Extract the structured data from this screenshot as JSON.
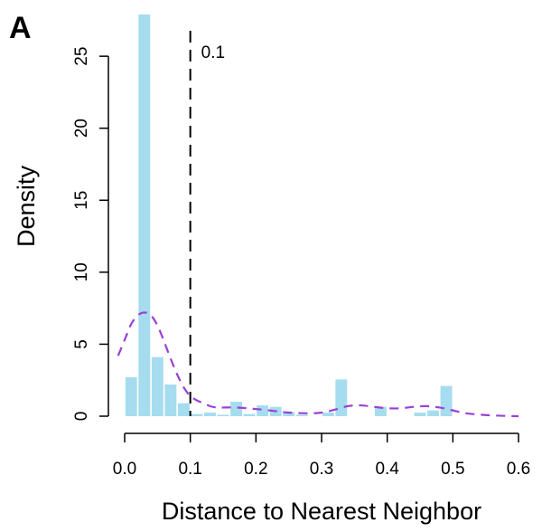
{
  "panel_label": "A",
  "colors": {
    "bar": "#a6dcef",
    "density_line": "#9b3fd6",
    "threshold_line": "#000000"
  },
  "chart_data": {
    "type": "bar",
    "xlabel": "Distance to Nearest Neighbor",
    "ylabel": "Density",
    "xlim": [
      0,
      0.6
    ],
    "ylim": [
      0,
      27.9
    ],
    "x_ticks": [
      0,
      0.1,
      0.2,
      0.3,
      0.4,
      0.5,
      0.6
    ],
    "x_tick_labels": [
      "0.0",
      "0.1",
      "0.2",
      "0.3",
      "0.4",
      "0.5",
      "0.6"
    ],
    "y_ticks": [
      0,
      5,
      10,
      15,
      20,
      25
    ],
    "y_tick_labels": [
      "0",
      "5",
      "10",
      "15",
      "20",
      "25"
    ],
    "bin_width": 0.02,
    "histogram": {
      "bin_starts": [
        0.0,
        0.02,
        0.04,
        0.06,
        0.08,
        0.1,
        0.12,
        0.14,
        0.16,
        0.18,
        0.2,
        0.22,
        0.24,
        0.26,
        0.28,
        0.3,
        0.32,
        0.34,
        0.36,
        0.38,
        0.4,
        0.42,
        0.44,
        0.46,
        0.48
      ],
      "values": [
        2.7,
        27.9,
        4.1,
        2.2,
        0.9,
        0.15,
        0.25,
        0.1,
        1.0,
        0.15,
        0.75,
        0.65,
        0.3,
        0.1,
        0.0,
        0.25,
        2.55,
        0.0,
        0.0,
        0.65,
        0.0,
        0.0,
        0.25,
        0.4,
        2.1
      ]
    },
    "density_curve": {
      "x": [
        -0.01,
        0.0,
        0.01,
        0.02,
        0.03,
        0.04,
        0.05,
        0.06,
        0.07,
        0.08,
        0.09,
        0.1,
        0.11,
        0.12,
        0.13,
        0.14,
        0.15,
        0.17,
        0.2,
        0.23,
        0.25,
        0.28,
        0.3,
        0.32,
        0.34,
        0.36,
        0.38,
        0.4,
        0.42,
        0.44,
        0.46,
        0.48,
        0.5,
        0.52,
        0.55,
        0.58,
        0.6
      ],
      "y": [
        4.2,
        5.3,
        6.4,
        7.0,
        7.2,
        7.0,
        6.3,
        5.2,
        4.0,
        2.9,
        2.0,
        1.4,
        1.1,
        0.9,
        0.7,
        0.6,
        0.6,
        0.6,
        0.5,
        0.35,
        0.25,
        0.2,
        0.25,
        0.45,
        0.7,
        0.75,
        0.65,
        0.55,
        0.55,
        0.65,
        0.7,
        0.6,
        0.4,
        0.2,
        0.08,
        0.02,
        0.0
      ]
    },
    "threshold": {
      "x": 0.1,
      "label": "0.1"
    }
  }
}
